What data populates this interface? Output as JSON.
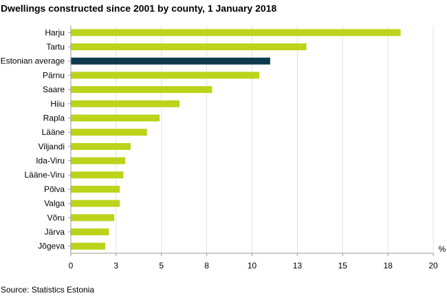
{
  "chart_data": {
    "type": "bar",
    "orientation": "horizontal",
    "title": "Dwellings constructed since 2001 by county, 1 January 2018",
    "xlabel": "%",
    "ylabel": "",
    "source": "Source: Statistics Estonia",
    "xlim": [
      0,
      20
    ],
    "grid": true,
    "categories": [
      "Harju",
      "Tartu",
      "Estonian average",
      "Pärnu",
      "Saare",
      "Hiiu",
      "Rapla",
      "Lääne",
      "Viljandi",
      "Ida-Viru",
      "Lääne-Viru",
      "Põlva",
      "Valga",
      "Võru",
      "Järva",
      "Jõgeva"
    ],
    "values": [
      18.2,
      13.0,
      11.0,
      10.4,
      7.8,
      6.0,
      4.9,
      4.2,
      3.3,
      3.0,
      2.9,
      2.7,
      2.7,
      2.4,
      2.1,
      1.9
    ],
    "xticks": [
      {
        "v": 0,
        "label": "0"
      },
      {
        "v": 2.5,
        "label": "3"
      },
      {
        "v": 5,
        "label": "5"
      },
      {
        "v": 7.5,
        "label": "8"
      },
      {
        "v": 10,
        "label": "10"
      },
      {
        "v": 12.5,
        "label": "13"
      },
      {
        "v": 15,
        "label": "15"
      },
      {
        "v": 17.5,
        "label": "18"
      },
      {
        "v": 20,
        "label": "20"
      }
    ],
    "colors": {
      "bar": "#bcd31b",
      "highlight": "#0d3a4d",
      "grid": "#e0e0e0",
      "axis": "#9a9a9a"
    },
    "highlight_category": "Estonian average"
  }
}
